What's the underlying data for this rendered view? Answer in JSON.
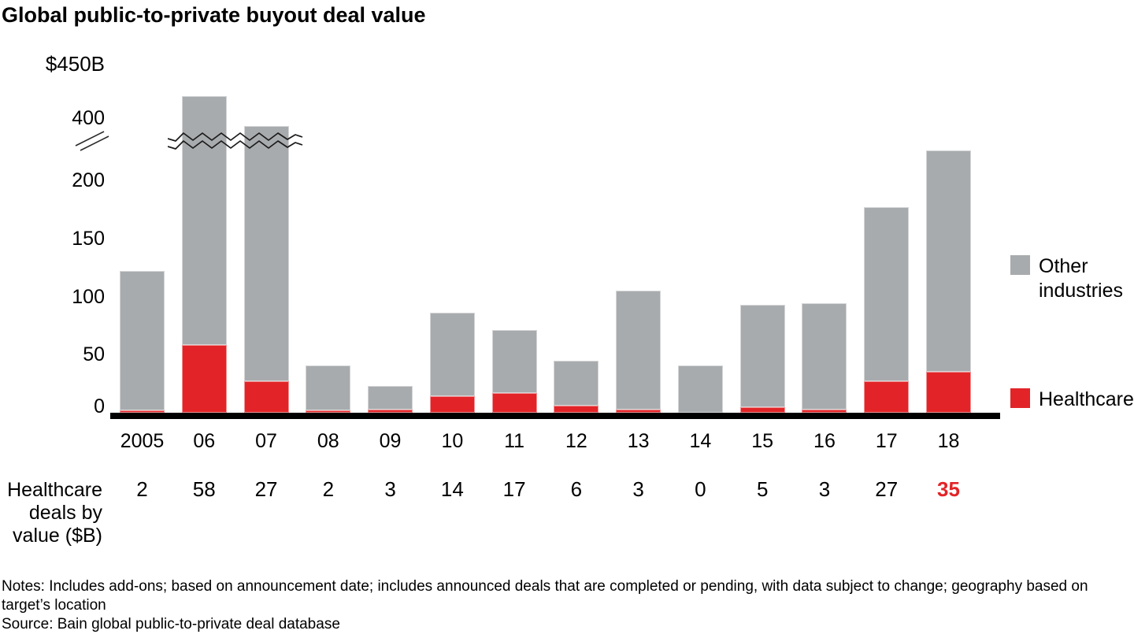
{
  "chart_data": {
    "type": "bar",
    "stacked": true,
    "title": "Global public-to-private buyout deal value",
    "y_axis_top_label": "$450B",
    "y_ticks": [
      400,
      200,
      150,
      100,
      50,
      0
    ],
    "ylim": [
      0,
      450
    ],
    "grid": false,
    "axis_break": {
      "present": true,
      "between": [
        230,
        400
      ]
    },
    "legend_position": "right",
    "categories": [
      "2005",
      "06",
      "07",
      "08",
      "09",
      "10",
      "11",
      "12",
      "13",
      "14",
      "15",
      "16",
      "17",
      "18"
    ],
    "series": [
      {
        "name": "Healthcare",
        "color": "#e22428",
        "values": [
          2,
          58,
          27,
          2,
          3,
          14,
          17,
          6,
          3,
          0,
          5,
          3,
          27,
          35
        ]
      },
      {
        "name": "Other industries",
        "color": "#a8abad",
        "values": [
          120,
          407,
          298,
          39,
          20,
          72,
          54,
          39,
          102,
          41,
          88,
          91,
          150,
          191
        ]
      }
    ],
    "estimated_totals": [
      122,
      465,
      325,
      41,
      23,
      86,
      71,
      45,
      105,
      41,
      93,
      94,
      177,
      226
    ]
  },
  "table": {
    "row_label": "Healthcare deals by value ($B)",
    "values": [
      "2",
      "58",
      "27",
      "2",
      "3",
      "14",
      "17",
      "6",
      "3",
      "0",
      "5",
      "3",
      "27",
      "35"
    ],
    "highlight_index": 13,
    "highlighted_value": "35",
    "highlight_color": "#e22428"
  },
  "legend": {
    "items": [
      {
        "label": "Other industries",
        "color": "#a8abad"
      },
      {
        "label": "Healthcare",
        "color": "#e22428"
      }
    ]
  },
  "footer": {
    "notes": "Notes: Includes add-ons; based on announcement date; includes announced deals that are completed or pending, with data subject to change; geography based on target’s location",
    "source": "Source: Bain global public-to-private deal database"
  }
}
